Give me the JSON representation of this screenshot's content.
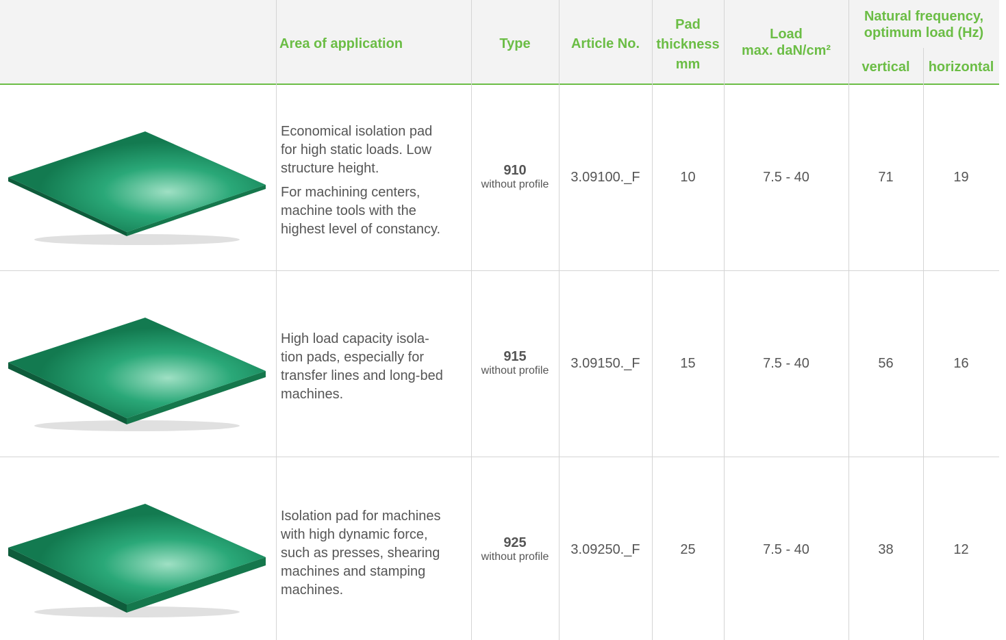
{
  "header": {
    "area": "Area of application",
    "type": "Type",
    "article": "Article No.",
    "thickness": [
      "Pad",
      "thickness",
      "mm"
    ],
    "load": [
      "Load",
      "max. daN/cm²"
    ],
    "frequency": [
      "Natural frequency,",
      "optimum load (Hz)"
    ],
    "vertical": "vertical",
    "horizontal": "horizontal"
  },
  "rows": [
    {
      "description": [
        [
          "Economical isolation pad",
          "for high static loads. Low",
          "structure height."
        ],
        [
          "For machining centers,",
          "machine tools with the",
          "highest level of constancy."
        ]
      ],
      "type": "910",
      "type_note": "without profile",
      "article": "3.09100._F",
      "thickness": 10,
      "load": "7.5 - 40",
      "vertical": 71,
      "horizontal": 19
    },
    {
      "description": [
        [
          "High load capacity isola-",
          "tion pads, especially for",
          "transfer lines and long-bed",
          "machines."
        ]
      ],
      "type": "915",
      "type_note": "without profile",
      "article": "3.09150._F",
      "thickness": 15,
      "load": "7.5 - 40",
      "vertical": 56,
      "horizontal": 16
    },
    {
      "description": [
        [
          "Isolation pad for machines",
          "with high dynamic force,",
          "such as presses, shearing",
          "machines and stamping",
          "machines."
        ]
      ],
      "type": "925",
      "type_note": "without profile",
      "article": "3.09250._F",
      "thickness": 25,
      "load": "7.5 - 40",
      "vertical": 38,
      "horizontal": 12
    }
  ]
}
